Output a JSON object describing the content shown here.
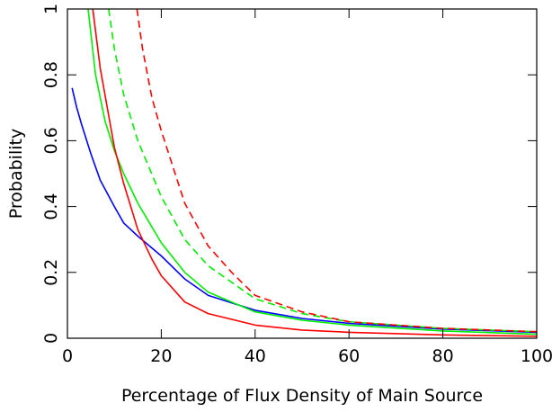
{
  "chart_data": {
    "type": "line",
    "xlabel": "Percentage of Flux Density of Main Source",
    "ylabel": "Probability",
    "xlim": [
      0,
      100
    ],
    "ylim": [
      0,
      1
    ],
    "xticks": [
      0,
      20,
      40,
      60,
      80,
      100
    ],
    "yticks": [
      0,
      0.2,
      0.4,
      0.6,
      0.8,
      1
    ],
    "grid": false,
    "series": [
      {
        "color": "#0000ff",
        "dash": false,
        "x": [
          1,
          2,
          3,
          5,
          7,
          10,
          12,
          15,
          20,
          25,
          30,
          40,
          50,
          60,
          80,
          100
        ],
        "values": [
          0.76,
          0.7,
          0.65,
          0.56,
          0.48,
          0.4,
          0.35,
          0.31,
          0.25,
          0.18,
          0.13,
          0.085,
          0.06,
          0.045,
          0.028,
          0.018
        ]
      },
      {
        "color": "#00ee00",
        "dash": false,
        "x": [
          4.4,
          6,
          8,
          10,
          12,
          15,
          20,
          25,
          30,
          40,
          50,
          60,
          80,
          100
        ],
        "values": [
          1,
          0.8,
          0.66,
          0.57,
          0.5,
          0.41,
          0.29,
          0.2,
          0.14,
          0.08,
          0.055,
          0.04,
          0.022,
          0.012
        ]
      },
      {
        "color": "#ff0000",
        "dash": false,
        "x": [
          5.4,
          7,
          10,
          12,
          15,
          18,
          20,
          25,
          30,
          40,
          50,
          60,
          80,
          100
        ],
        "values": [
          1,
          0.82,
          0.58,
          0.47,
          0.33,
          0.24,
          0.19,
          0.11,
          0.075,
          0.04,
          0.025,
          0.018,
          0.01,
          0.006
        ]
      },
      {
        "color": "#00ee00",
        "dash": true,
        "x": [
          8.8,
          10,
          12,
          15,
          20,
          25,
          30,
          40,
          50,
          60,
          80,
          100
        ],
        "values": [
          1,
          0.88,
          0.74,
          0.6,
          0.43,
          0.3,
          0.22,
          0.12,
          0.075,
          0.05,
          0.03,
          0.02
        ]
      },
      {
        "color": "#ff0000",
        "dash": true,
        "x": [
          14.8,
          16,
          18,
          20,
          25,
          30,
          35,
          40,
          50,
          60,
          80,
          100
        ],
        "values": [
          1,
          0.88,
          0.73,
          0.63,
          0.41,
          0.28,
          0.2,
          0.13,
          0.08,
          0.05,
          0.03,
          0.02
        ]
      }
    ]
  }
}
